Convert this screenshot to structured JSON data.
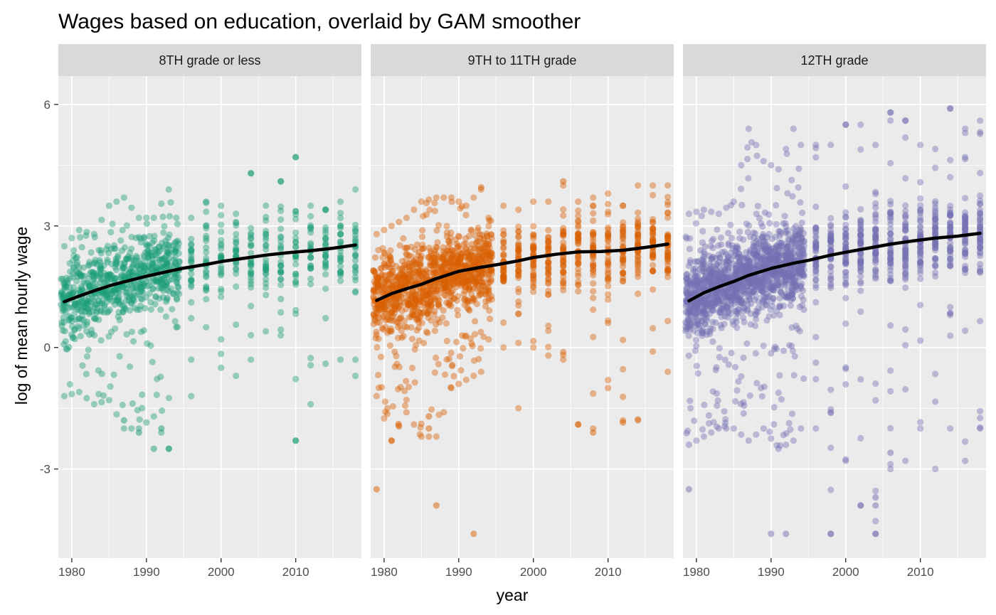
{
  "chart_data": {
    "type": "scatter",
    "title": "Wages based on education, overlaid by GAM smoother",
    "xlabel": "year",
    "ylabel": "log of mean hourly wage",
    "xlim": [
      1978.2,
      2018.8
    ],
    "ylim": [
      -5.2,
      6.7
    ],
    "x_ticks": [
      1980,
      1990,
      2000,
      2010
    ],
    "y_ticks": [
      -3,
      0,
      3,
      6
    ],
    "y_tick_labels": [
      "-3",
      "0",
      "3",
      "6"
    ],
    "grid": true,
    "legend": "none",
    "smoother_color": "#000000",
    "panels": [
      {
        "label": "8TH grade or less",
        "color": "#1b9e77",
        "smoother": {
          "x": [
            1979,
            1981,
            1983,
            1985,
            1987,
            1990,
            1993,
            1995,
            1998,
            2000,
            2003,
            2006,
            2009,
            2012,
            2015,
            2018
          ],
          "y": [
            1.13,
            1.27,
            1.4,
            1.52,
            1.62,
            1.76,
            1.88,
            1.96,
            2.05,
            2.12,
            2.2,
            2.28,
            2.34,
            2.39,
            2.45,
            2.53
          ]
        },
        "points_summary": {
          "x": [
            1979,
            1981,
            1983,
            1985,
            1987,
            1989,
            1991,
            1993,
            1994,
            1996,
            1998,
            2000,
            2002,
            2004,
            2006,
            2008,
            2010,
            2012,
            2014,
            2016,
            2018
          ],
          "y_min": [
            -1.2,
            -1.1,
            -1.4,
            -1.3,
            -2.0,
            -2.0,
            -1.7,
            -2.5,
            0.5,
            -1.2,
            0.5,
            -0.5,
            -0.7,
            -0.3,
            0.4,
            0.3,
            -2.3,
            -1.4,
            -0.4,
            -0.3,
            -0.7
          ],
          "y_max": [
            2.5,
            2.9,
            2.8,
            3.5,
            3.7,
            3.2,
            3.2,
            3.9,
            3.2,
            3.2,
            3.6,
            3.5,
            3.3,
            4.3,
            3.5,
            4.1,
            4.7,
            3.5,
            3.4,
            3.6,
            3.9
          ],
          "y_center": [
            1.15,
            1.3,
            1.4,
            1.55,
            1.65,
            1.75,
            1.85,
            1.9,
            2.0,
            2.05,
            2.1,
            2.15,
            2.2,
            2.25,
            2.3,
            2.35,
            2.35,
            2.4,
            2.45,
            2.5,
            2.5
          ],
          "outliers": [
            {
              "x": 1987,
              "y": -1.8
            },
            {
              "x": 1989,
              "y": -2.1
            },
            {
              "x": 1991,
              "y": -2.5
            },
            {
              "x": 1993,
              "y": -2.5
            },
            {
              "x": 1992,
              "y": -2.0
            },
            {
              "x": 2010,
              "y": -2.3
            },
            {
              "x": 2004,
              "y": 4.3
            },
            {
              "x": 2010,
              "y": 4.7
            },
            {
              "x": 2008,
              "y": 4.1
            }
          ]
        }
      },
      {
        "label": "9TH to 11TH grade",
        "color": "#d95f02",
        "smoother": {
          "x": [
            1979,
            1981,
            1983,
            1985,
            1987,
            1990,
            1993,
            1995,
            1998,
            2000,
            2003,
            2006,
            2009,
            2012,
            2015,
            2018
          ],
          "y": [
            1.16,
            1.33,
            1.45,
            1.56,
            1.7,
            1.88,
            1.98,
            2.04,
            2.14,
            2.22,
            2.3,
            2.36,
            2.37,
            2.4,
            2.47,
            2.55
          ]
        },
        "points_summary": {
          "x": [
            1979,
            1981,
            1983,
            1985,
            1987,
            1989,
            1991,
            1993,
            1994,
            1996,
            1998,
            2000,
            2002,
            2004,
            2006,
            2008,
            2010,
            2012,
            2014,
            2016,
            2018
          ],
          "y_min": [
            -1.2,
            -2.3,
            -1.6,
            -2.2,
            -2.2,
            -1.0,
            -0.8,
            -0.6,
            0.2,
            0.0,
            -1.5,
            0.0,
            -0.2,
            -0.3,
            -1.9,
            -2.0,
            -1.0,
            -1.8,
            -1.8,
            -0.1,
            -0.6
          ],
          "y_max": [
            2.8,
            3.0,
            3.2,
            3.6,
            3.7,
            3.7,
            3.5,
            3.9,
            3.2,
            3.5,
            3.4,
            3.6,
            3.6,
            4.0,
            3.6,
            3.7,
            3.8,
            3.5,
            4.0,
            4.0,
            4.0
          ],
          "y_center": [
            1.2,
            1.35,
            1.45,
            1.55,
            1.7,
            1.85,
            1.95,
            2.0,
            2.05,
            2.1,
            2.15,
            2.2,
            2.3,
            2.35,
            2.35,
            2.4,
            2.4,
            2.45,
            2.5,
            2.55,
            2.55
          ],
          "outliers": [
            {
              "x": 1979,
              "y": -3.5
            },
            {
              "x": 1987,
              "y": -3.9
            },
            {
              "x": 1992,
              "y": -4.6
            },
            {
              "x": 1986,
              "y": -1.7
            },
            {
              "x": 1986,
              "y": -2.0
            },
            {
              "x": 1981,
              "y": -2.3
            },
            {
              "x": 2006,
              "y": -1.9
            },
            {
              "x": 2008,
              "y": -2.1
            },
            {
              "x": 2012,
              "y": -1.85
            },
            {
              "x": 2004,
              "y": 4.1
            },
            {
              "x": 1993,
              "y": 3.95
            }
          ]
        }
      },
      {
        "label": "12TH grade",
        "color": "#7570b3",
        "smoother": {
          "x": [
            1979,
            1981,
            1983,
            1985,
            1987,
            1990,
            1993,
            1995,
            1998,
            2000,
            2003,
            2006,
            2009,
            2012,
            2015,
            2018
          ],
          "y": [
            1.15,
            1.35,
            1.5,
            1.63,
            1.78,
            1.95,
            2.08,
            2.15,
            2.28,
            2.35,
            2.45,
            2.55,
            2.63,
            2.7,
            2.75,
            2.82
          ]
        },
        "points_summary": {
          "x": [
            1979,
            1981,
            1983,
            1985,
            1987,
            1989,
            1991,
            1993,
            1994,
            1996,
            1998,
            2000,
            2002,
            2004,
            2006,
            2008,
            2010,
            2012,
            2014,
            2016,
            2018
          ],
          "y_min": [
            -2.4,
            -2.2,
            -2.0,
            -2.0,
            -2.3,
            -2.0,
            -2.5,
            -2.3,
            -2.0,
            -2.0,
            -4.6,
            -2.8,
            -3.9,
            -4.6,
            -3.0,
            -2.8,
            -2.0,
            -3.0,
            -2.0,
            -2.8,
            -2.0
          ],
          "y_max": [
            3.3,
            3.4,
            3.3,
            3.6,
            5.4,
            4.6,
            4.4,
            5.4,
            5.0,
            5.0,
            5.0,
            5.5,
            5.5,
            5.0,
            5.8,
            5.6,
            5.0,
            4.9,
            5.9,
            5.4,
            5.6
          ],
          "y_center": [
            1.15,
            1.35,
            1.5,
            1.65,
            1.8,
            1.95,
            2.05,
            2.1,
            2.15,
            2.25,
            2.3,
            2.35,
            2.45,
            2.5,
            2.55,
            2.6,
            2.65,
            2.7,
            2.75,
            2.8,
            2.8
          ],
          "outliers": [
            {
              "x": 1979,
              "y": -3.5
            },
            {
              "x": 1990,
              "y": -4.6
            },
            {
              "x": 1992,
              "y": -4.6
            },
            {
              "x": 1998,
              "y": -4.6
            },
            {
              "x": 2004,
              "y": -4.6
            },
            {
              "x": 2004,
              "y": -3.9
            },
            {
              "x": 2004,
              "y": -3.7
            },
            {
              "x": 2002,
              "y": -3.9
            },
            {
              "x": 2006,
              "y": -2.6
            },
            {
              "x": 2006,
              "y": 5.8
            },
            {
              "x": 2014,
              "y": 5.9
            },
            {
              "x": 2008,
              "y": 5.6
            },
            {
              "x": 2000,
              "y": 5.5
            }
          ]
        }
      }
    ]
  }
}
